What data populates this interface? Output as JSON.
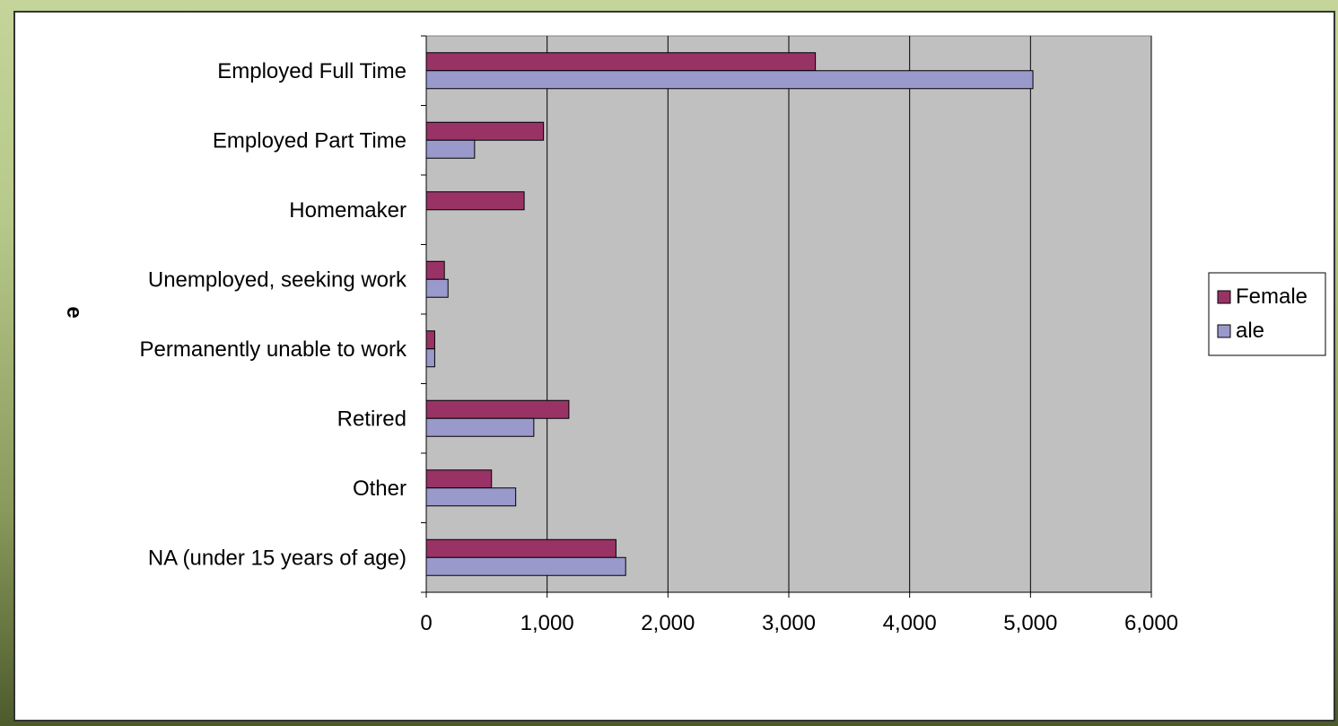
{
  "chart_data": {
    "type": "bar",
    "orientation": "horizontal",
    "title": "",
    "xlabel": "",
    "ylabel": "e",
    "categories": [
      "Employed Full Time",
      "Employed Part Time",
      "Homemaker",
      "Unemployed, seeking work",
      "Permanently unable to work",
      "Retired",
      "Other",
      "NA (under 15 years of age)"
    ],
    "series": [
      {
        "name": "Female",
        "color": "#993366",
        "values": [
          3220,
          970,
          810,
          150,
          70,
          1180,
          540,
          1570
        ]
      },
      {
        "name": "ale",
        "color": "#9999cc",
        "values": [
          5020,
          400,
          0,
          180,
          70,
          890,
          740,
          1650
        ]
      }
    ],
    "xlim": [
      0,
      6000
    ],
    "xticks": [
      0,
      1000,
      2000,
      3000,
      4000,
      5000,
      6000
    ],
    "xtick_labels": [
      "0",
      "1,000",
      "2,000",
      "3,000",
      "4,000",
      "5,000",
      "6,000"
    ],
    "grid": true,
    "plot_background": "#c0c0c0",
    "legend_position": "right"
  }
}
